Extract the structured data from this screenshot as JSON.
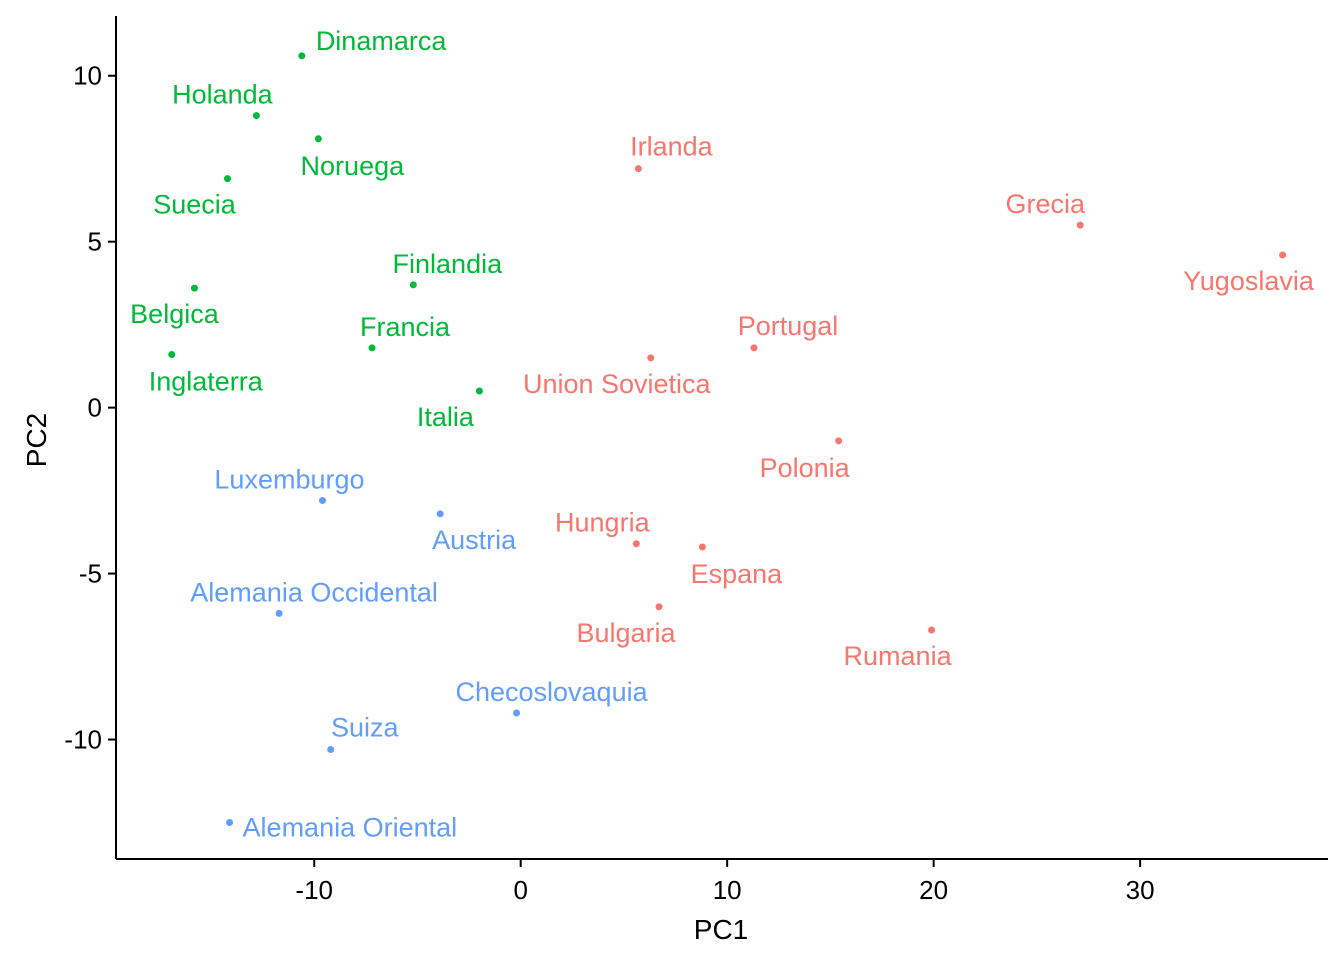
{
  "chart_data": {
    "type": "scatter",
    "xlabel": "PC1",
    "ylabel": "PC2",
    "xlim": [
      -19.6,
      39.1
    ],
    "ylim": [
      -13.6,
      11.8
    ],
    "xticks": [
      -10,
      0,
      10,
      20,
      30
    ],
    "yticks": [
      -10,
      -5,
      0,
      5,
      10
    ],
    "grid": false,
    "legend": "none",
    "group_colors": {
      "green": "#00ba38",
      "red": "#f8766d",
      "blue": "#619cff"
    },
    "points": [
      {
        "label": "Dinamarca",
        "x": -10.6,
        "y": 10.6,
        "group": "green",
        "anchor": "start",
        "dx": 14,
        "dy": -6
      },
      {
        "label": "Holanda",
        "x": -12.8,
        "y": 8.8,
        "group": "green",
        "anchor": "middle",
        "dx": -34,
        "dy": -12
      },
      {
        "label": "Noruega",
        "x": -9.8,
        "y": 8.1,
        "group": "green",
        "anchor": "middle",
        "dx": 34,
        "dy": 36
      },
      {
        "label": "Suecia",
        "x": -14.2,
        "y": 6.9,
        "group": "green",
        "anchor": "middle",
        "dx": -33,
        "dy": 35
      },
      {
        "label": "Finlandia",
        "x": -5.2,
        "y": 3.7,
        "group": "green",
        "anchor": "middle",
        "dx": 34,
        "dy": -12
      },
      {
        "label": "Belgica",
        "x": -15.8,
        "y": 3.6,
        "group": "green",
        "anchor": "middle",
        "dx": -20,
        "dy": 35
      },
      {
        "label": "Francia",
        "x": -7.2,
        "y": 1.8,
        "group": "green",
        "anchor": "middle",
        "dx": 33,
        "dy": -12
      },
      {
        "label": "Inglaterra",
        "x": -16.9,
        "y": 1.6,
        "group": "green",
        "anchor": "middle",
        "dx": 34,
        "dy": 36
      },
      {
        "label": "Italia",
        "x": -2.0,
        "y": 0.5,
        "group": "green",
        "anchor": "middle",
        "dx": -34,
        "dy": 35
      },
      {
        "label": "Irlanda",
        "x": 5.7,
        "y": 7.2,
        "group": "red",
        "anchor": "middle",
        "dx": 33,
        "dy": -13
      },
      {
        "label": "Grecia",
        "x": 27.1,
        "y": 5.5,
        "group": "red",
        "anchor": "middle",
        "dx": -35,
        "dy": -12
      },
      {
        "label": "Yugoslavia",
        "x": 36.9,
        "y": 4.6,
        "group": "red",
        "anchor": "middle",
        "dx": -34,
        "dy": 35
      },
      {
        "label": "Portugal",
        "x": 11.3,
        "y": 1.8,
        "group": "red",
        "anchor": "middle",
        "dx": 34,
        "dy": -13
      },
      {
        "label": "Union Sovietica",
        "x": 6.3,
        "y": 1.5,
        "group": "red",
        "anchor": "middle",
        "dx": -34,
        "dy": 35
      },
      {
        "label": "Polonia",
        "x": 15.4,
        "y": -1.0,
        "group": "red",
        "anchor": "middle",
        "dx": -34,
        "dy": 36
      },
      {
        "label": "Hungria",
        "x": 5.6,
        "y": -4.1,
        "group": "red",
        "anchor": "middle",
        "dx": -34,
        "dy": -12
      },
      {
        "label": "Espana",
        "x": 8.8,
        "y": -4.2,
        "group": "red",
        "anchor": "middle",
        "dx": 34,
        "dy": 36
      },
      {
        "label": "Bulgaria",
        "x": 6.7,
        "y": -6.0,
        "group": "red",
        "anchor": "middle",
        "dx": -33,
        "dy": 35
      },
      {
        "label": "Rumania",
        "x": 19.9,
        "y": -6.7,
        "group": "red",
        "anchor": "middle",
        "dx": -34,
        "dy": 35
      },
      {
        "label": "Luxemburgo",
        "x": -9.6,
        "y": -2.8,
        "group": "blue",
        "anchor": "middle",
        "dx": -33,
        "dy": -12
      },
      {
        "label": "Austria",
        "x": -3.9,
        "y": -3.2,
        "group": "blue",
        "anchor": "middle",
        "dx": 34,
        "dy": 35
      },
      {
        "label": "Alemania Occidental",
        "x": -11.7,
        "y": -6.2,
        "group": "blue",
        "anchor": "middle",
        "dx": 35,
        "dy": -12
      },
      {
        "label": "Checoslovaquia",
        "x": -0.2,
        "y": -9.2,
        "group": "blue",
        "anchor": "middle",
        "dx": 35,
        "dy": -12
      },
      {
        "label": "Suiza",
        "x": -9.2,
        "y": -10.3,
        "group": "blue",
        "anchor": "middle",
        "dx": 34,
        "dy": -13
      },
      {
        "label": "Alemania Oriental",
        "x": -14.1,
        "y": -12.5,
        "group": "blue",
        "anchor": "start",
        "dx": 13,
        "dy": 14
      }
    ]
  }
}
